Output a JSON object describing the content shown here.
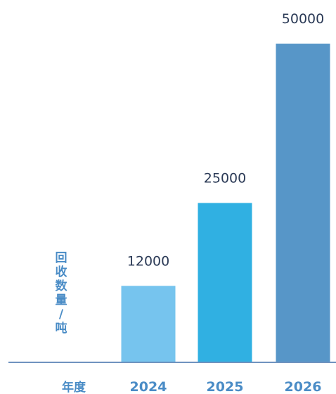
{
  "chart_data": {
    "type": "bar",
    "categories": [
      "2024",
      "2025",
      "2026"
    ],
    "values": [
      12000,
      25000,
      50000
    ],
    "value_labels": [
      "12000",
      "25000",
      "50000"
    ],
    "xlabel": "年度",
    "ylabel": "回收数量/吨",
    "ylim": [
      0,
      50000
    ],
    "grid": false,
    "legend": "none",
    "bar_colors": [
      "#76c4ee",
      "#30b0e2",
      "#5796c8"
    ],
    "axis_color": "#6f93bf",
    "tick_label_color": "#4a8cc6",
    "value_label_color": "#2b3a56"
  }
}
